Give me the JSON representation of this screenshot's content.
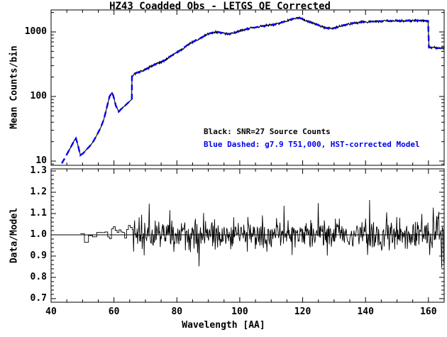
{
  "chart_data": {
    "type": "line",
    "title": "HZ43 Coadded Obs - LETGS QE Corrected",
    "xlabel": "Wavelength [AA]",
    "xlim": [
      40,
      165
    ],
    "xticks": [
      40,
      60,
      80,
      100,
      120,
      140,
      160
    ],
    "x_minor_step": 5,
    "grid": false,
    "panels": [
      {
        "name": "spectrum",
        "ylabel": "Mean Counts/bin",
        "yscale": "log",
        "ylim": [
          8.6,
          2190
        ],
        "yticks": [
          10,
          100,
          1000
        ],
        "series": [
          {
            "name": "source-counts-black",
            "legend": "Black: SNR=27 Source Counts",
            "color": "#000000",
            "style": "solid-noisy",
            "x_start": 45.6,
            "noise_dex_low": 0.004,
            "noise_dex_high": 0.012,
            "noise_threshold": 65.7
          },
          {
            "name": "model-blue-dashed",
            "legend": "Blue Dashed: g7.9 T51,000, HST-corrected Model",
            "color": "#0000ee",
            "style": "dashed",
            "points": [
              [
                43.4,
                9.2
              ],
              [
                44.3,
                11
              ],
              [
                45.3,
                13.5
              ],
              [
                46.3,
                16.5
              ],
              [
                47.3,
                20.5
              ],
              [
                47.9,
                22.5
              ],
              [
                48.5,
                18
              ],
              [
                49.3,
                12.3
              ],
              [
                50.2,
                13.2
              ],
              [
                51.2,
                15
              ],
              [
                52.2,
                16.8
              ],
              [
                53.4,
                20
              ],
              [
                54.6,
                25.6
              ],
              [
                55.8,
                33
              ],
              [
                56.8,
                44.6
              ],
              [
                57.8,
                70
              ],
              [
                58.6,
                100
              ],
              [
                59.4,
                116
              ],
              [
                59.9,
                98
              ],
              [
                60.6,
                72
              ],
              [
                61.5,
                58
              ],
              [
                62.3,
                64
              ],
              [
                63.5,
                72
              ],
              [
                64.5,
                80
              ],
              [
                65.4,
                88
              ],
              [
                65.68,
                92
              ],
              [
                65.72,
                205
              ],
              [
                66.5,
                225
              ],
              [
                68,
                240
              ],
              [
                70,
                262
              ],
              [
                72,
                295
              ],
              [
                74,
                330
              ],
              [
                76,
                360
              ],
              [
                78,
                420
              ],
              [
                80,
                480
              ],
              [
                82,
                560
              ],
              [
                84,
                660
              ],
              [
                86,
                740
              ],
              [
                88,
                830
              ],
              [
                90,
                930
              ],
              [
                91.9,
                1000
              ],
              [
                93.5,
                990
              ],
              [
                95,
                950
              ],
              [
                96.6,
                930
              ],
              [
                98,
                960
              ],
              [
                100,
                1030
              ],
              [
                102,
                1100
              ],
              [
                104,
                1150
              ],
              [
                106,
                1200
              ],
              [
                108,
                1250
              ],
              [
                110,
                1280
              ],
              [
                112,
                1340
              ],
              [
                114,
                1430
              ],
              [
                116,
                1550
              ],
              [
                117.5,
                1630
              ],
              [
                118.5,
                1650
              ],
              [
                119.5,
                1620
              ],
              [
                121,
                1500
              ],
              [
                123,
                1380
              ],
              [
                125,
                1270
              ],
              [
                127,
                1170
              ],
              [
                128.8,
                1110
              ],
              [
                130.5,
                1160
              ],
              [
                132.5,
                1250
              ],
              [
                134.5,
                1320
              ],
              [
                136.5,
                1380
              ],
              [
                138.5,
                1420
              ],
              [
                141,
                1440
              ],
              [
                144,
                1460
              ],
              [
                147,
                1470
              ],
              [
                150,
                1480
              ],
              [
                153,
                1490
              ],
              [
                156,
                1495
              ],
              [
                158,
                1495
              ],
              [
                159.9,
                1480
              ],
              [
                160.15,
                575
              ],
              [
                161,
                575
              ],
              [
                162.5,
                565
              ],
              [
                165,
                560
              ]
            ]
          }
        ],
        "annotations": [
          {
            "text": "Black: SNR=27 Source Counts",
            "color": "#000000"
          },
          {
            "text": "Blue Dashed: g7.9 T51,000, HST-corrected Model",
            "color": "#0000ee"
          }
        ]
      },
      {
        "name": "ratio",
        "ylabel": "Data/Model",
        "yscale": "linear",
        "ylim": [
          0.683,
          1.31
        ],
        "yticks": [
          1.3,
          1.2,
          1.1,
          1.0,
          0.9,
          0.8,
          0.7
        ],
        "y_minor_step": 0.02,
        "reference_line": 1.0,
        "series": [
          {
            "name": "data-over-model",
            "color": "#000000",
            "mean": 1.0,
            "segments": [
              {
                "from": 49.3,
                "to": 58,
                "bin": 1.3,
                "sigma": 0.026,
                "style": "steps"
              },
              {
                "from": 58,
                "to": 66,
                "bin": 0.6,
                "sigma": 0.034,
                "style": "steps"
              },
              {
                "from": 66,
                "to": 160,
                "bin": 0.16,
                "sigma": 0.036,
                "style": "line"
              },
              {
                "from": 160,
                "to": 165,
                "bin": 0.16,
                "sigma": 0.048,
                "style": "line"
              }
            ]
          }
        ]
      }
    ]
  }
}
